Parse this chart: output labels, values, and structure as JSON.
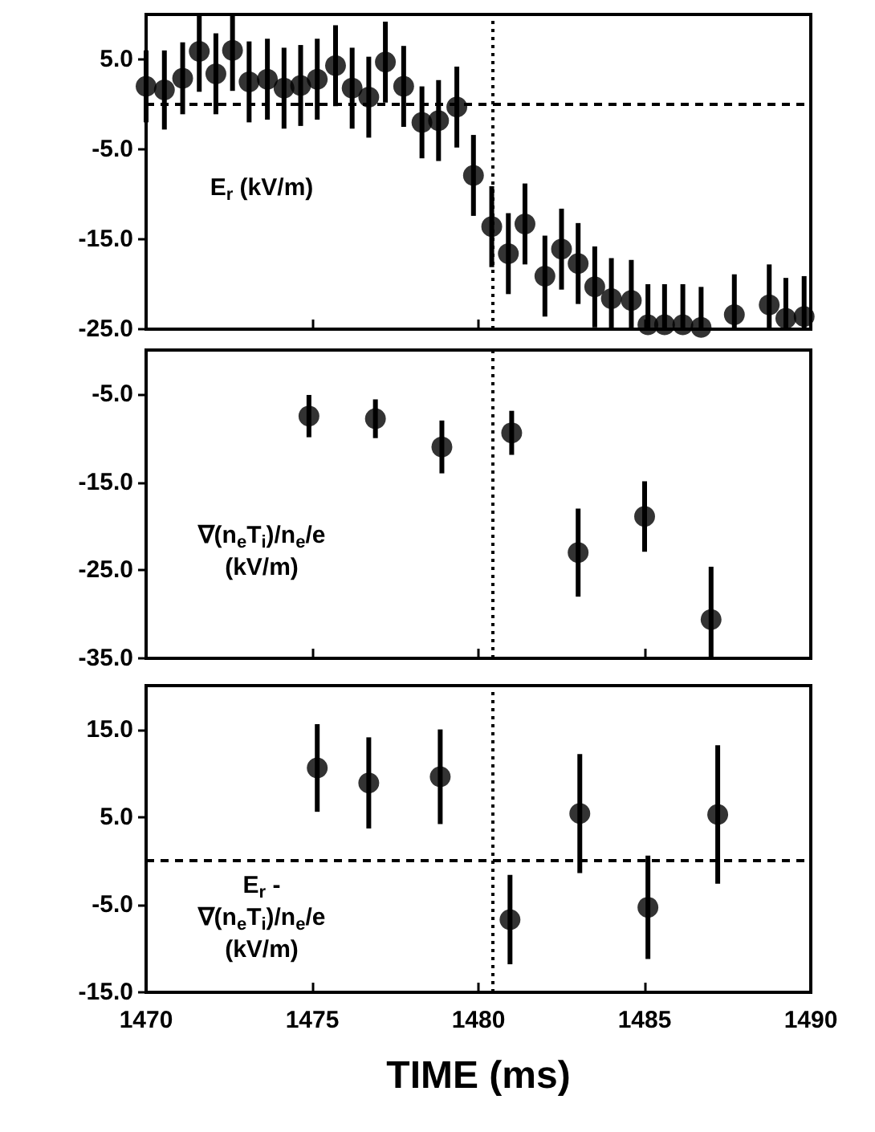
{
  "chart_data": [
    {
      "type": "scatter",
      "marker": "circle",
      "color": "#000000",
      "tick_labels": "y",
      "x": [
        1470.0,
        1470.55,
        1471.1,
        1471.6,
        1472.1,
        1472.6,
        1473.1,
        1473.65,
        1474.15,
        1474.65,
        1475.15,
        1475.7,
        1476.2,
        1476.7,
        1477.2,
        1477.75,
        1478.3,
        1478.8,
        1479.35,
        1479.85,
        1480.4,
        1480.9,
        1481.4,
        1482.0,
        1482.5,
        1483.0,
        1483.5,
        1484.0,
        1484.6,
        1485.1,
        1485.6,
        1486.15,
        1486.7,
        1487.7,
        1488.75,
        1489.25,
        1489.8
      ],
      "values": [
        2.0,
        1.6,
        2.9,
        5.9,
        3.4,
        6.0,
        2.5,
        2.8,
        1.8,
        2.1,
        2.8,
        4.3,
        1.8,
        0.8,
        4.7,
        2.0,
        -2.0,
        -1.8,
        -0.3,
        -7.9,
        -13.6,
        -16.6,
        -13.3,
        -19.1,
        -16.1,
        -17.7,
        -20.3,
        -21.6,
        -21.8,
        -24.5,
        -24.5,
        -24.5,
        -24.8,
        -23.4,
        -22.3,
        -23.8,
        -23.6
      ],
      "errors": [
        4,
        4.4,
        4,
        [
          1.4,
          10
        ],
        4.5,
        [
          1.5,
          10
        ],
        4.5,
        4.5,
        4.5,
        4.5,
        4.5,
        4.5,
        4.5,
        4.5,
        4.5,
        4.5,
        4,
        4.5,
        4.5,
        4.5,
        4.5,
        4.5,
        4.5,
        4.5,
        4.5,
        4.5,
        4.5,
        [
          -25,
          -17.1
        ],
        [
          -25,
          -17.3
        ],
        [
          -25,
          -20
        ],
        [
          -25,
          -20
        ],
        [
          -25,
          -20
        ],
        [
          -25,
          -20.3
        ],
        [
          -25,
          -18.9
        ],
        [
          -25,
          -17.8
        ],
        [
          -25,
          -19.3
        ],
        [
          -25,
          -19.1
        ]
      ],
      "xlim": [
        1470,
        1490
      ],
      "xticks": [
        1470,
        1475,
        1480,
        1485,
        1490
      ],
      "ylim": [
        -25,
        10
      ],
      "yticks": [
        {
          "value": 5,
          "label": "5.0"
        },
        {
          "value": -5,
          "label": "-5.0"
        },
        {
          "value": -15,
          "label": "-15.0"
        },
        {
          "value": -25,
          "label": "-25.0"
        }
      ],
      "ref_lines": [
        {
          "axis": "y",
          "value": 0,
          "line_style": "dashed"
        },
        {
          "axis": "x",
          "value": 1480.4,
          "line_style": "dotted"
        }
      ],
      "annotations": [
        "E$_{r}$ (kV/m)"
      ]
    },
    {
      "type": "scatter",
      "marker": "circle",
      "color": "#000000",
      "tick_labels": "y",
      "x": [
        1474.9,
        1476.9,
        1478.9,
        1481.0,
        1483.0,
        1485.0,
        1487.0
      ],
      "values": [
        -7.5,
        -7.8,
        -11.0,
        -9.4,
        -23.0,
        -18.9,
        -30.6
      ],
      "errors": [
        2.4,
        2.2,
        3,
        2.5,
        5,
        4,
        [
          -35,
          -24.6
        ]
      ],
      "xlim": [
        1470,
        1490
      ],
      "xticks": [
        1470,
        1475,
        1480,
        1485,
        1490
      ],
      "ylim": [
        -35,
        0
      ],
      "yticks": [
        {
          "value": -5,
          "label": "-5.0"
        },
        {
          "value": -15,
          "label": "-15.0"
        },
        {
          "value": -25,
          "label": "-25.0"
        },
        {
          "value": -35,
          "label": "-35.0"
        }
      ],
      "ref_lines": [
        {
          "axis": "x",
          "value": 1480.4,
          "line_style": "dotted"
        }
      ],
      "annotations": [
        "∇(n$_{e}$T$_{i}$)/n$_{e}$/e\n(kV/m)"
      ]
    },
    {
      "type": "scatter",
      "marker": "circle",
      "color": "#000000",
      "xlabel": "TIME (ms)",
      "x": [
        1475.15,
        1476.7,
        1478.85,
        1480.95,
        1483.05,
        1485.1,
        1487.2
      ],
      "values": [
        10.6,
        8.9,
        9.6,
        -6.7,
        5.4,
        -5.3,
        5.3
      ],
      "errors": [
        5,
        5.2,
        5.4,
        5.1,
        6.8,
        5.9,
        7.9
      ],
      "xlim": [
        1470,
        1490
      ],
      "xticks": [
        1470,
        1475,
        1480,
        1485,
        1490
      ],
      "ylim": [
        -15,
        20
      ],
      "yticks": [
        {
          "value": 15,
          "label": "15.0"
        },
        {
          "value": 5,
          "label": "5.0"
        },
        {
          "value": -5,
          "label": "-5.0"
        },
        {
          "value": -15,
          "label": "-15.0"
        }
      ],
      "ref_lines": [
        {
          "axis": "y",
          "value": 0,
          "line_style": "dashed"
        },
        {
          "axis": "x",
          "value": 1480.4,
          "line_style": "dotted"
        }
      ],
      "annotations": [
        "E$_{r}$ -\n∇(n$_{e}$T$_{i}$)/n$_{e}$/e\n(kV/m)"
      ]
    }
  ]
}
